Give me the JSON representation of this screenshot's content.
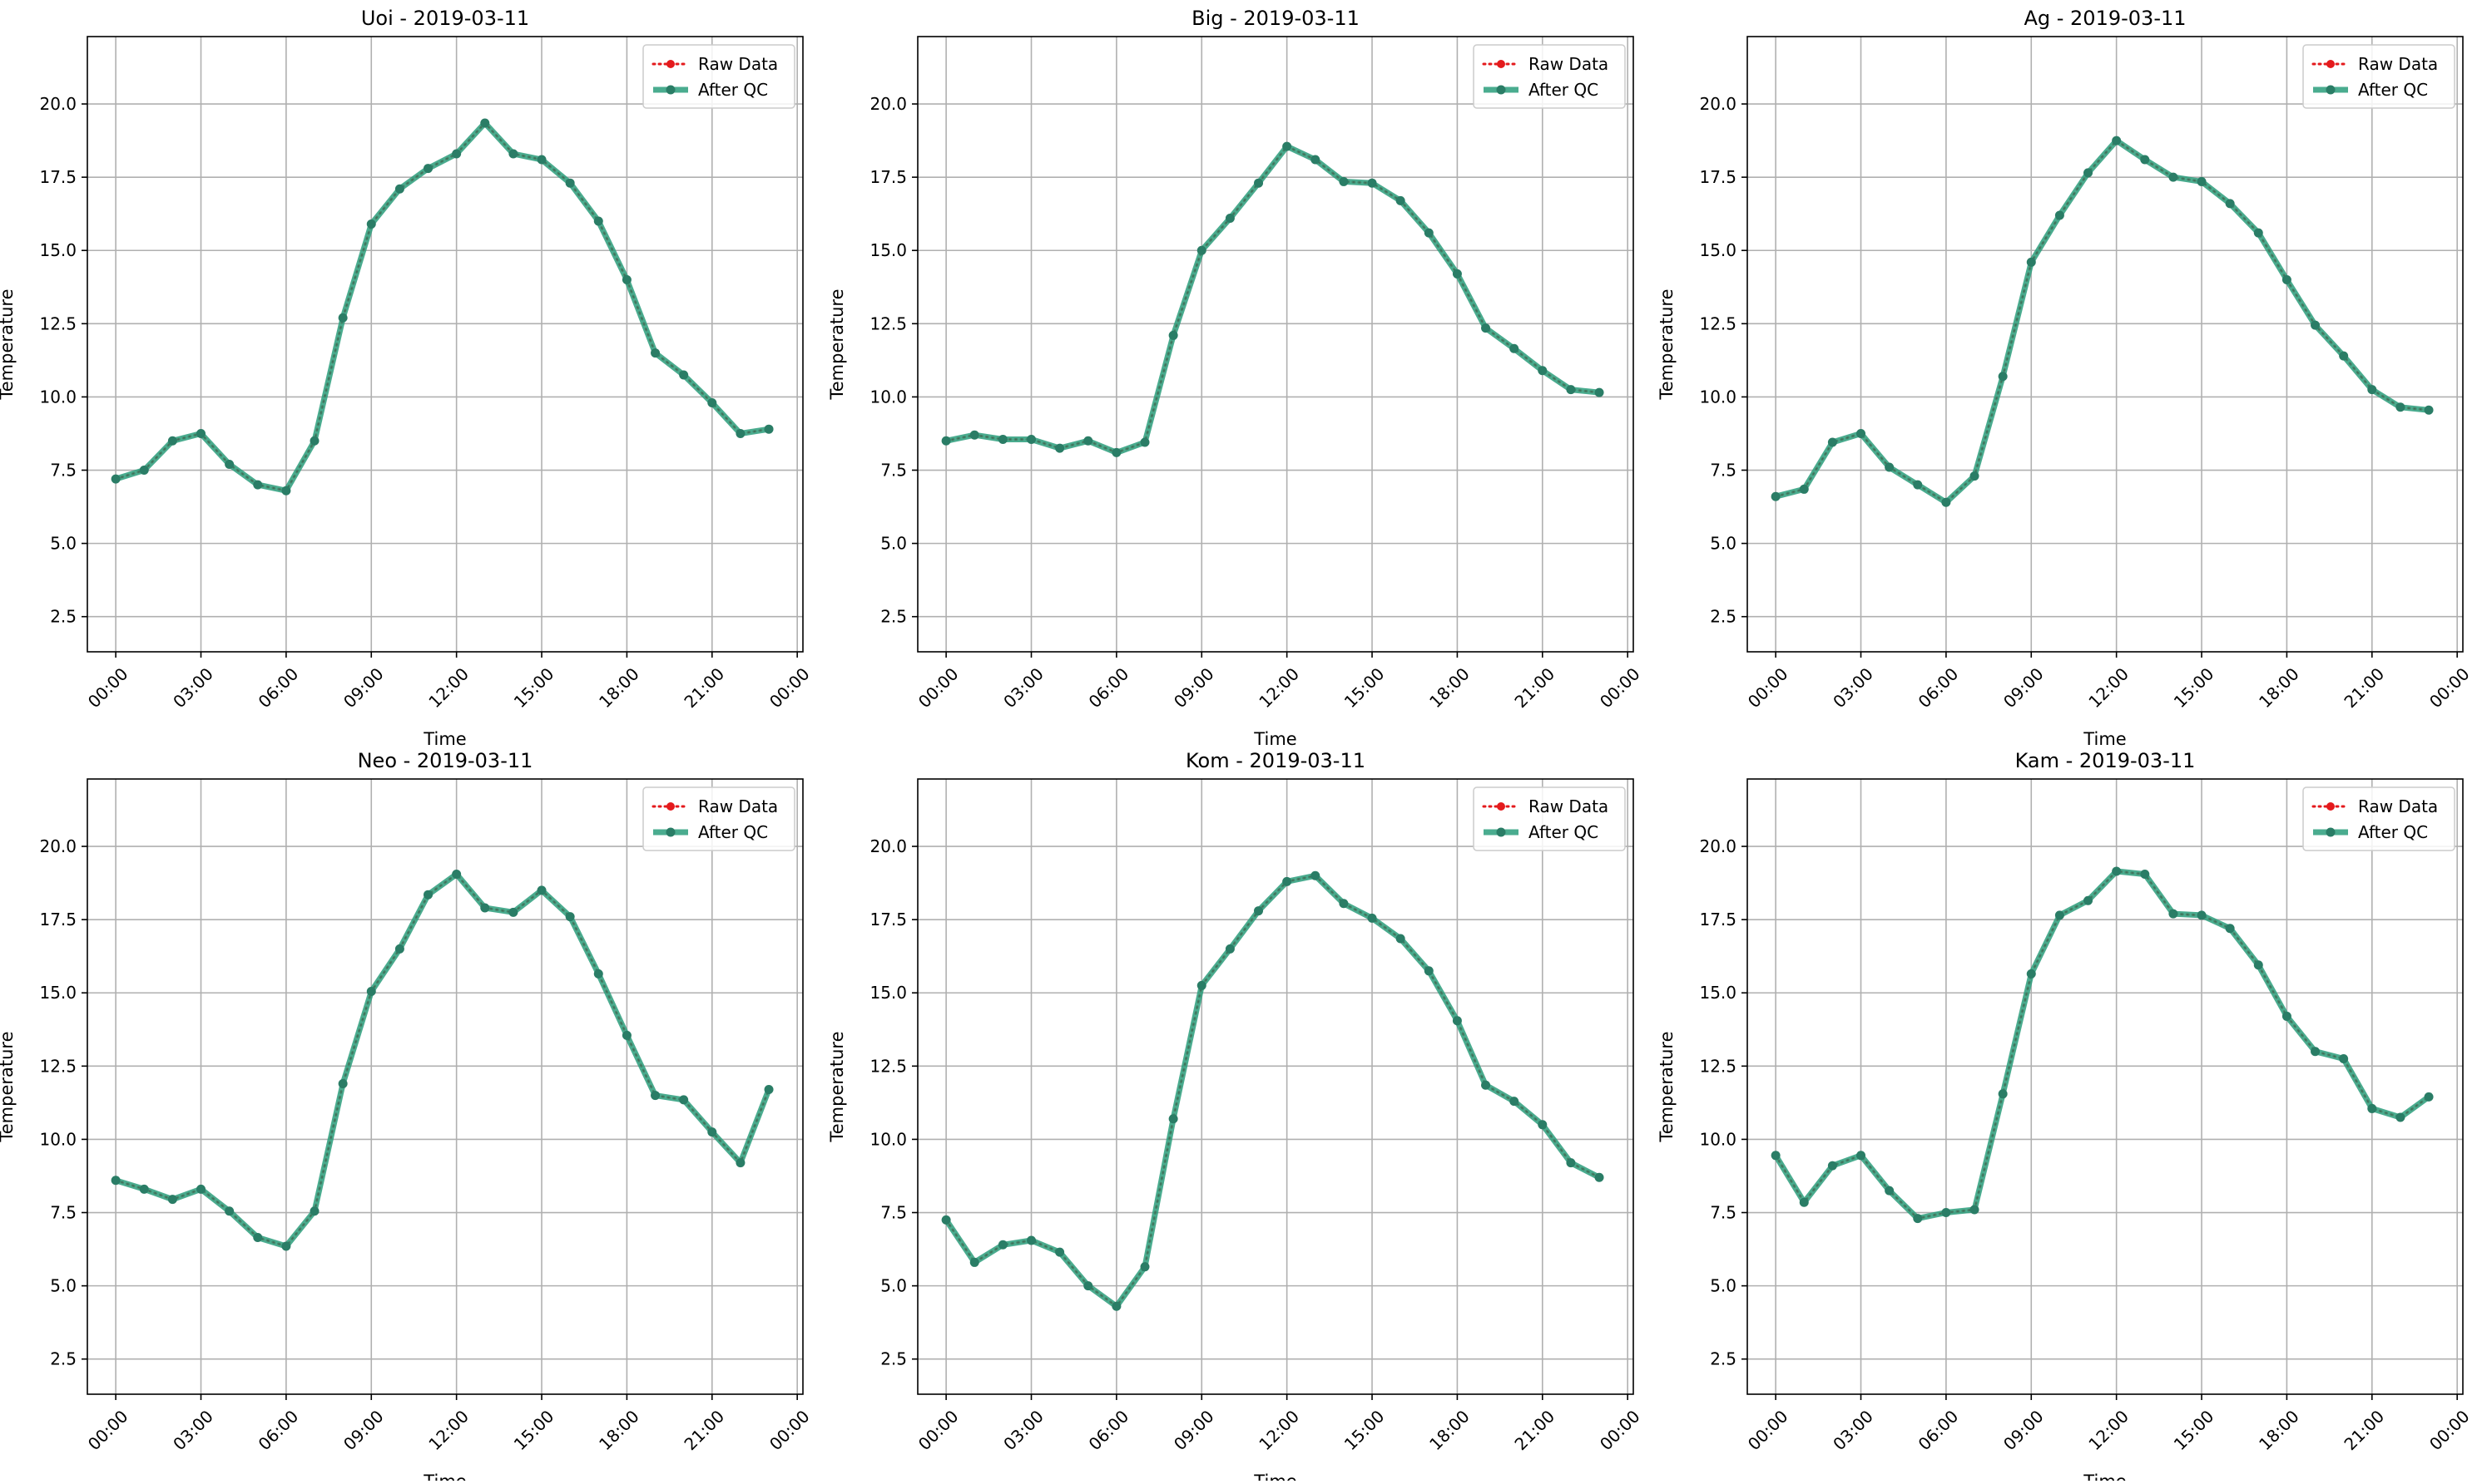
{
  "figure": {
    "colors": {
      "raw": "#e41a1c",
      "qc": "#2a9d7b",
      "qc_marker": "#2a7d66",
      "grid": "#b0b0b0",
      "axis": "#000000"
    },
    "x_tick_labels": [
      "00:00",
      "03:00",
      "06:00",
      "09:00",
      "12:00",
      "15:00",
      "18:00",
      "21:00",
      "00:00"
    ],
    "y_ticks": [
      2.5,
      5.0,
      7.5,
      10.0,
      12.5,
      15.0,
      17.5,
      20.0
    ]
  },
  "chart_data": [
    {
      "type": "line",
      "title": "Uoi - 2019-03-11",
      "xlabel": "Time",
      "ylabel": "Temperature",
      "x_hours": [
        0,
        1,
        2,
        3,
        4,
        5,
        6,
        7,
        8,
        9,
        10,
        11,
        12,
        13,
        14,
        15,
        16,
        17,
        18,
        19,
        20,
        21,
        22,
        23
      ],
      "ylim": [
        1.3,
        22.3
      ],
      "xlim": [
        -1,
        24.2
      ],
      "grid": true,
      "legend_position": "top-right",
      "series": [
        {
          "name": "Raw Data",
          "style": "dotted",
          "values": [
            7.2,
            7.5,
            8.5,
            8.75,
            7.7,
            7.0,
            6.8,
            8.5,
            12.7,
            15.9,
            17.1,
            17.8,
            18.3,
            19.35,
            18.3,
            18.1,
            17.3,
            16.0,
            14.0,
            11.5,
            10.75,
            9.8,
            8.75,
            8.9
          ]
        },
        {
          "name": "After QC",
          "style": "solid",
          "values": [
            7.2,
            7.5,
            8.5,
            8.75,
            7.7,
            7.0,
            6.8,
            8.5,
            12.7,
            15.9,
            17.1,
            17.8,
            18.3,
            19.35,
            18.3,
            18.1,
            17.3,
            16.0,
            14.0,
            11.5,
            10.75,
            9.8,
            8.75,
            8.9
          ]
        }
      ]
    },
    {
      "type": "line",
      "title": "Big - 2019-03-11",
      "xlabel": "Time",
      "ylabel": "Temperature",
      "x_hours": [
        0,
        1,
        2,
        3,
        4,
        5,
        6,
        7,
        8,
        9,
        10,
        11,
        12,
        13,
        14,
        15,
        16,
        17,
        18,
        19,
        20,
        21,
        22,
        23
      ],
      "ylim": [
        1.3,
        22.3
      ],
      "xlim": [
        -1,
        24.2
      ],
      "grid": true,
      "legend_position": "top-right",
      "series": [
        {
          "name": "Raw Data",
          "style": "dotted",
          "values": [
            8.5,
            8.7,
            8.55,
            8.55,
            8.25,
            8.5,
            8.1,
            8.45,
            12.1,
            15.0,
            16.1,
            17.3,
            18.55,
            18.1,
            17.35,
            17.3,
            16.7,
            15.6,
            14.2,
            12.35,
            11.65,
            10.9,
            10.25,
            10.15
          ]
        },
        {
          "name": "After QC",
          "style": "solid",
          "values": [
            8.5,
            8.7,
            8.55,
            8.55,
            8.25,
            8.5,
            8.1,
            8.45,
            12.1,
            15.0,
            16.1,
            17.3,
            18.55,
            18.1,
            17.35,
            17.3,
            16.7,
            15.6,
            14.2,
            12.35,
            11.65,
            10.9,
            10.25,
            10.15
          ]
        }
      ]
    },
    {
      "type": "line",
      "title": "Ag - 2019-03-11",
      "xlabel": "Time",
      "ylabel": "Temperature",
      "x_hours": [
        0,
        1,
        2,
        3,
        4,
        5,
        6,
        7,
        8,
        9,
        10,
        11,
        12,
        13,
        14,
        15,
        16,
        17,
        18,
        19,
        20,
        21,
        22,
        23
      ],
      "ylim": [
        1.3,
        22.3
      ],
      "xlim": [
        -1,
        24.2
      ],
      "grid": true,
      "legend_position": "top-right",
      "series": [
        {
          "name": "Raw Data",
          "style": "dotted",
          "values": [
            6.6,
            6.85,
            8.45,
            8.75,
            7.6,
            7.0,
            6.4,
            7.3,
            10.7,
            14.6,
            16.2,
            17.65,
            18.75,
            18.1,
            17.5,
            17.35,
            16.6,
            15.6,
            14.0,
            12.45,
            11.4,
            10.25,
            9.65,
            9.55
          ]
        },
        {
          "name": "After QC",
          "style": "solid",
          "values": [
            6.6,
            6.85,
            8.45,
            8.75,
            7.6,
            7.0,
            6.4,
            7.3,
            10.7,
            14.6,
            16.2,
            17.65,
            18.75,
            18.1,
            17.5,
            17.35,
            16.6,
            15.6,
            14.0,
            12.45,
            11.4,
            10.25,
            9.65,
            9.55
          ]
        }
      ]
    },
    {
      "type": "line",
      "title": "Neo - 2019-03-11",
      "xlabel": "Time",
      "ylabel": "Temperature",
      "x_hours": [
        0,
        1,
        2,
        3,
        4,
        5,
        6,
        7,
        8,
        9,
        10,
        11,
        12,
        13,
        14,
        15,
        16,
        17,
        18,
        19,
        20,
        21,
        22,
        23
      ],
      "ylim": [
        1.3,
        22.3
      ],
      "xlim": [
        -1,
        24.2
      ],
      "grid": true,
      "legend_position": "top-right",
      "series": [
        {
          "name": "Raw Data",
          "style": "dotted",
          "values": [
            8.6,
            8.3,
            7.95,
            8.3,
            7.55,
            6.65,
            6.35,
            7.55,
            11.9,
            15.05,
            16.5,
            18.35,
            19.05,
            17.9,
            17.75,
            18.5,
            17.6,
            15.65,
            13.55,
            11.5,
            11.35,
            10.25,
            9.2,
            11.7
          ]
        },
        {
          "name": "After QC",
          "style": "solid",
          "values": [
            8.6,
            8.3,
            7.95,
            8.3,
            7.55,
            6.65,
            6.35,
            7.55,
            11.9,
            15.05,
            16.5,
            18.35,
            19.05,
            17.9,
            17.75,
            18.5,
            17.6,
            15.65,
            13.55,
            11.5,
            11.35,
            10.25,
            9.2,
            11.7
          ]
        }
      ]
    },
    {
      "type": "line",
      "title": "Kom - 2019-03-11",
      "xlabel": "Time",
      "ylabel": "Temperature",
      "x_hours": [
        0,
        1,
        2,
        3,
        4,
        5,
        6,
        7,
        8,
        9,
        10,
        11,
        12,
        13,
        14,
        15,
        16,
        17,
        18,
        19,
        20,
        21,
        22,
        23
      ],
      "ylim": [
        1.3,
        22.3
      ],
      "xlim": [
        -1,
        24.2
      ],
      "grid": true,
      "legend_position": "top-right",
      "series": [
        {
          "name": "Raw Data",
          "style": "dotted",
          "values": [
            7.25,
            5.8,
            6.4,
            6.55,
            6.15,
            5.0,
            4.3,
            5.65,
            10.7,
            15.25,
            16.5,
            17.8,
            18.8,
            19.0,
            18.05,
            17.55,
            16.85,
            15.75,
            14.05,
            11.85,
            11.3,
            10.5,
            9.2,
            8.7
          ]
        },
        {
          "name": "After QC",
          "style": "solid",
          "values": [
            7.25,
            5.8,
            6.4,
            6.55,
            6.15,
            5.0,
            4.3,
            5.65,
            10.7,
            15.25,
            16.5,
            17.8,
            18.8,
            19.0,
            18.05,
            17.55,
            16.85,
            15.75,
            14.05,
            11.85,
            11.3,
            10.5,
            9.2,
            8.7
          ]
        }
      ]
    },
    {
      "type": "line",
      "title": "Kam - 2019-03-11",
      "xlabel": "Time",
      "ylabel": "Temperature",
      "x_hours": [
        0,
        1,
        2,
        3,
        4,
        5,
        6,
        7,
        8,
        9,
        10,
        11,
        12,
        13,
        14,
        15,
        16,
        17,
        18,
        19,
        20,
        21,
        22,
        23
      ],
      "ylim": [
        1.3,
        22.3
      ],
      "xlim": [
        -1,
        24.2
      ],
      "grid": true,
      "legend_position": "top-right",
      "series": [
        {
          "name": "Raw Data",
          "style": "dotted",
          "values": [
            9.45,
            7.85,
            9.1,
            9.45,
            8.25,
            7.3,
            7.5,
            7.6,
            11.55,
            15.65,
            17.65,
            18.15,
            19.15,
            19.05,
            17.7,
            17.65,
            17.2,
            15.95,
            14.2,
            13.0,
            12.75,
            11.05,
            10.75,
            11.45
          ]
        },
        {
          "name": "After QC",
          "style": "solid",
          "values": [
            9.45,
            7.85,
            9.1,
            9.45,
            8.25,
            7.3,
            7.5,
            7.6,
            11.55,
            15.65,
            17.65,
            18.15,
            19.15,
            19.05,
            17.7,
            17.65,
            17.2,
            15.95,
            14.2,
            13.0,
            12.75,
            11.05,
            10.75,
            11.45
          ]
        }
      ]
    }
  ]
}
